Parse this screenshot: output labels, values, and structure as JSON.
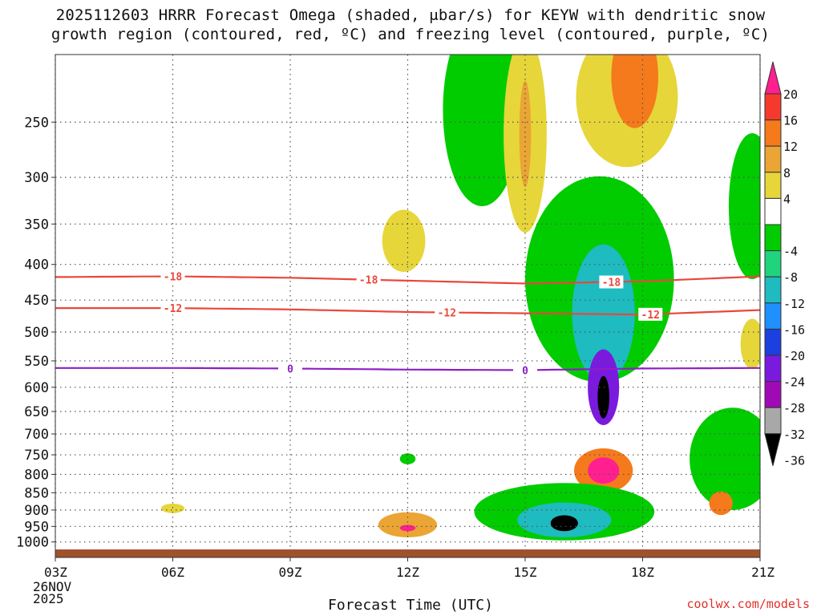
{
  "title_line1": "2025112603 HRRR Forecast Omega (shaded, μbar/s) for KEYW with dendritic snow",
  "title_line2": "growth region (contoured, red, ºC) and freezing level (contoured, purple, ºC)",
  "credit": "coolwx.com/models",
  "chart_data": {
    "type": "time-height cross section",
    "xlabel": "Forecast Time (UTC)",
    "x_ticks": [
      "03Z",
      "06Z",
      "09Z",
      "12Z",
      "15Z",
      "18Z",
      "21Z"
    ],
    "x_date_label": [
      "26NOV",
      "2025"
    ],
    "x_range_hours": [
      3,
      21
    ],
    "y_ticks": [
      250,
      300,
      350,
      400,
      450,
      500,
      550,
      600,
      650,
      700,
      750,
      800,
      850,
      900,
      950,
      1000
    ],
    "y_range_mb": [
      200,
      1025
    ],
    "y_scale": "log-pressure",
    "grid": "dotted",
    "colorbar": {
      "labels": [
        "20",
        "16",
        "12",
        "8",
        "4",
        "-4",
        "-8",
        "-12",
        "-16",
        "-20",
        "-24",
        "-28",
        "-32",
        "-36"
      ],
      "colors": [
        "#ff1f8e",
        "#f53a2d",
        "#f47a1c",
        "#eaa534",
        "#e6d63a",
        "#ffffff",
        "#00cc00",
        "#1fd47d",
        "#1ebbc0",
        "#1e90ff",
        "#1c3fe0",
        "#7a1adf",
        "#a00ab5",
        "#a8a8a8",
        "#000000"
      ]
    },
    "contours": [
      {
        "name": "dendritic snow growth -18",
        "label": "-18",
        "color": "#e8483a",
        "points": [
          [
            3,
            417
          ],
          [
            6,
            416
          ],
          [
            9,
            418
          ],
          [
            12,
            422
          ],
          [
            15,
            426
          ],
          [
            18,
            423
          ],
          [
            21,
            416
          ]
        ],
        "label_hours": [
          6,
          11,
          17.2
        ]
      },
      {
        "name": "dendritic snow growth -12",
        "label": "-12",
        "color": "#e8483a",
        "points": [
          [
            3,
            462
          ],
          [
            6,
            462
          ],
          [
            9,
            464
          ],
          [
            12,
            468
          ],
          [
            15,
            470
          ],
          [
            18,
            472
          ],
          [
            21,
            465
          ]
        ],
        "label_hours": [
          6,
          13,
          18.2
        ]
      },
      {
        "name": "freezing level 0",
        "label": "0",
        "color": "#8e1fc2",
        "points": [
          [
            3,
            563
          ],
          [
            6,
            563
          ],
          [
            9,
            564
          ],
          [
            12,
            566
          ],
          [
            15,
            567
          ],
          [
            18,
            564
          ],
          [
            21,
            563
          ]
        ],
        "label_hours": [
          9,
          15
        ]
      }
    ],
    "omega_features": [
      {
        "value": -8,
        "hour": 12,
        "mb_center": 760,
        "r_hours": 0.2,
        "r_mb": 14
      },
      {
        "value": 8,
        "hour": 12,
        "mb_center": 945,
        "r_hours": 0.75,
        "r_mb": 40
      },
      {
        "value": 20,
        "hour": 12,
        "mb_center": 955,
        "r_hours": 0.2,
        "r_mb": 10
      },
      {
        "value": 4,
        "hour": 6,
        "mb_center": 895,
        "r_hours": 0.3,
        "r_mb": 14
      },
      {
        "value": 4,
        "hour": 11.9,
        "mb_center": 370,
        "r_hours": 0.55,
        "r_mb": 40
      },
      {
        "value": -8,
        "hour": 13.9,
        "mb_center": 240,
        "r_hours": 1.0,
        "r_mb": 90
      },
      {
        "value": 4,
        "hour": 15,
        "mb_center": 260,
        "r_hours": 0.55,
        "r_mb": 100
      },
      {
        "value": 8,
        "hour": 15,
        "mb_center": 260,
        "r_hours": 0.15,
        "r_mb": 50
      },
      {
        "value": -8,
        "hour": 16.9,
        "mb_center": 420,
        "r_hours": 1.9,
        "r_mb": 170
      },
      {
        "value": -16,
        "hour": 17,
        "mb_center": 470,
        "r_hours": 0.8,
        "r_mb": 120
      },
      {
        "value": -28,
        "hour": 17,
        "mb_center": 600,
        "r_hours": 0.4,
        "r_mb": 80
      },
      {
        "value": -36,
        "hour": 17,
        "mb_center": 620,
        "r_hours": 0.15,
        "r_mb": 45
      },
      {
        "value": 4,
        "hour": 17.6,
        "mb_center": 230,
        "r_hours": 1.3,
        "r_mb": 60
      },
      {
        "value": 12,
        "hour": 17.8,
        "mb_center": 215,
        "r_hours": 0.6,
        "r_mb": 40
      },
      {
        "value": 12,
        "hour": 17,
        "mb_center": 790,
        "r_hours": 0.75,
        "r_mb": 60
      },
      {
        "value": 20,
        "hour": 17,
        "mb_center": 790,
        "r_hours": 0.4,
        "r_mb": 35
      },
      {
        "value": -8,
        "hour": 16,
        "mb_center": 905,
        "r_hours": 2.3,
        "r_mb": 90
      },
      {
        "value": -16,
        "hour": 16,
        "mb_center": 930,
        "r_hours": 1.2,
        "r_mb": 55
      },
      {
        "value": -36,
        "hour": 16,
        "mb_center": 940,
        "r_hours": 0.35,
        "r_mb": 25
      },
      {
        "value": -8,
        "hour": 20.3,
        "mb_center": 760,
        "r_hours": 1.1,
        "r_mb": 140
      },
      {
        "value": 12,
        "hour": 20,
        "mb_center": 880,
        "r_hours": 0.3,
        "r_mb": 35
      },
      {
        "value": -8,
        "hour": 20.8,
        "mb_center": 330,
        "r_hours": 0.6,
        "r_mb": 90
      },
      {
        "value": 4,
        "hour": 20.8,
        "mb_center": 520,
        "r_hours": 0.3,
        "r_mb": 45
      }
    ]
  }
}
